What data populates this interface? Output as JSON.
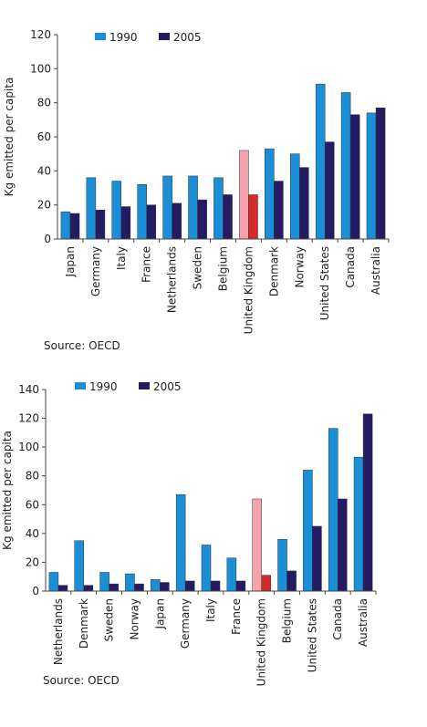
{
  "chart_data": [
    {
      "type": "bar",
      "y_label": "Kg emitted per capita",
      "source": "Source: OECD",
      "categories": [
        "Japan",
        "Germany",
        "Italy",
        "France",
        "Netherlands",
        "Sweden",
        "Belgium",
        "United Kingdom",
        "Denmark",
        "Norway",
        "United States",
        "Canada",
        "Australia"
      ],
      "series": [
        {
          "name": "1990",
          "color": "#1a8ed6",
          "colors": [
            "#1a8ed6",
            "#1a8ed6",
            "#1a8ed6",
            "#1a8ed6",
            "#1a8ed6",
            "#1a8ed6",
            "#1a8ed6",
            "#f4a3ab",
            "#1a8ed6",
            "#1a8ed6",
            "#1a8ed6",
            "#1a8ed6",
            "#1a8ed6"
          ],
          "values": [
            16,
            36,
            34,
            32,
            37,
            37,
            36,
            52,
            53,
            50,
            91,
            86,
            74
          ]
        },
        {
          "name": "2005",
          "color": "#241c63",
          "colors": [
            "#241c63",
            "#241c63",
            "#241c63",
            "#241c63",
            "#241c63",
            "#241c63",
            "#241c63",
            "#d42a2a",
            "#241c63",
            "#241c63",
            "#241c63",
            "#241c63",
            "#241c63"
          ],
          "values": [
            15,
            17,
            19,
            20,
            21,
            23,
            26,
            26,
            34,
            42,
            57,
            73,
            77
          ]
        }
      ],
      "ylim": [
        0,
        120
      ],
      "yticks": [
        0,
        20,
        40,
        60,
        80,
        100,
        120
      ]
    },
    {
      "type": "bar",
      "y_label": "Kg emitted per capita",
      "source": "Source: OECD",
      "categories": [
        "Netherlands",
        "Denmark",
        "Sweden",
        "Norway",
        "Japan",
        "Germany",
        "Italy",
        "France",
        "United Kingdom",
        "Belgium",
        "United States",
        "Canada",
        "Australia"
      ],
      "series": [
        {
          "name": "1990",
          "color": "#1a8ed6",
          "colors": [
            "#1a8ed6",
            "#1a8ed6",
            "#1a8ed6",
            "#1a8ed6",
            "#1a8ed6",
            "#1a8ed6",
            "#1a8ed6",
            "#1a8ed6",
            "#f4a3ab",
            "#1a8ed6",
            "#1a8ed6",
            "#1a8ed6",
            "#1a8ed6"
          ],
          "values": [
            13,
            35,
            13,
            12,
            8,
            67,
            32,
            23,
            64,
            36,
            84,
            113,
            93
          ]
        },
        {
          "name": "2005",
          "color": "#241c63",
          "colors": [
            "#241c63",
            "#241c63",
            "#241c63",
            "#241c63",
            "#241c63",
            "#241c63",
            "#241c63",
            "#241c63",
            "#d42a2a",
            "#241c63",
            "#241c63",
            "#241c63",
            "#241c63"
          ],
          "values": [
            4,
            4,
            5,
            5,
            6,
            7,
            7,
            7,
            11,
            14,
            45,
            64,
            123
          ]
        }
      ],
      "ylim": [
        0,
        140
      ],
      "yticks": [
        0,
        20,
        40,
        60,
        80,
        100,
        120,
        140
      ]
    }
  ]
}
